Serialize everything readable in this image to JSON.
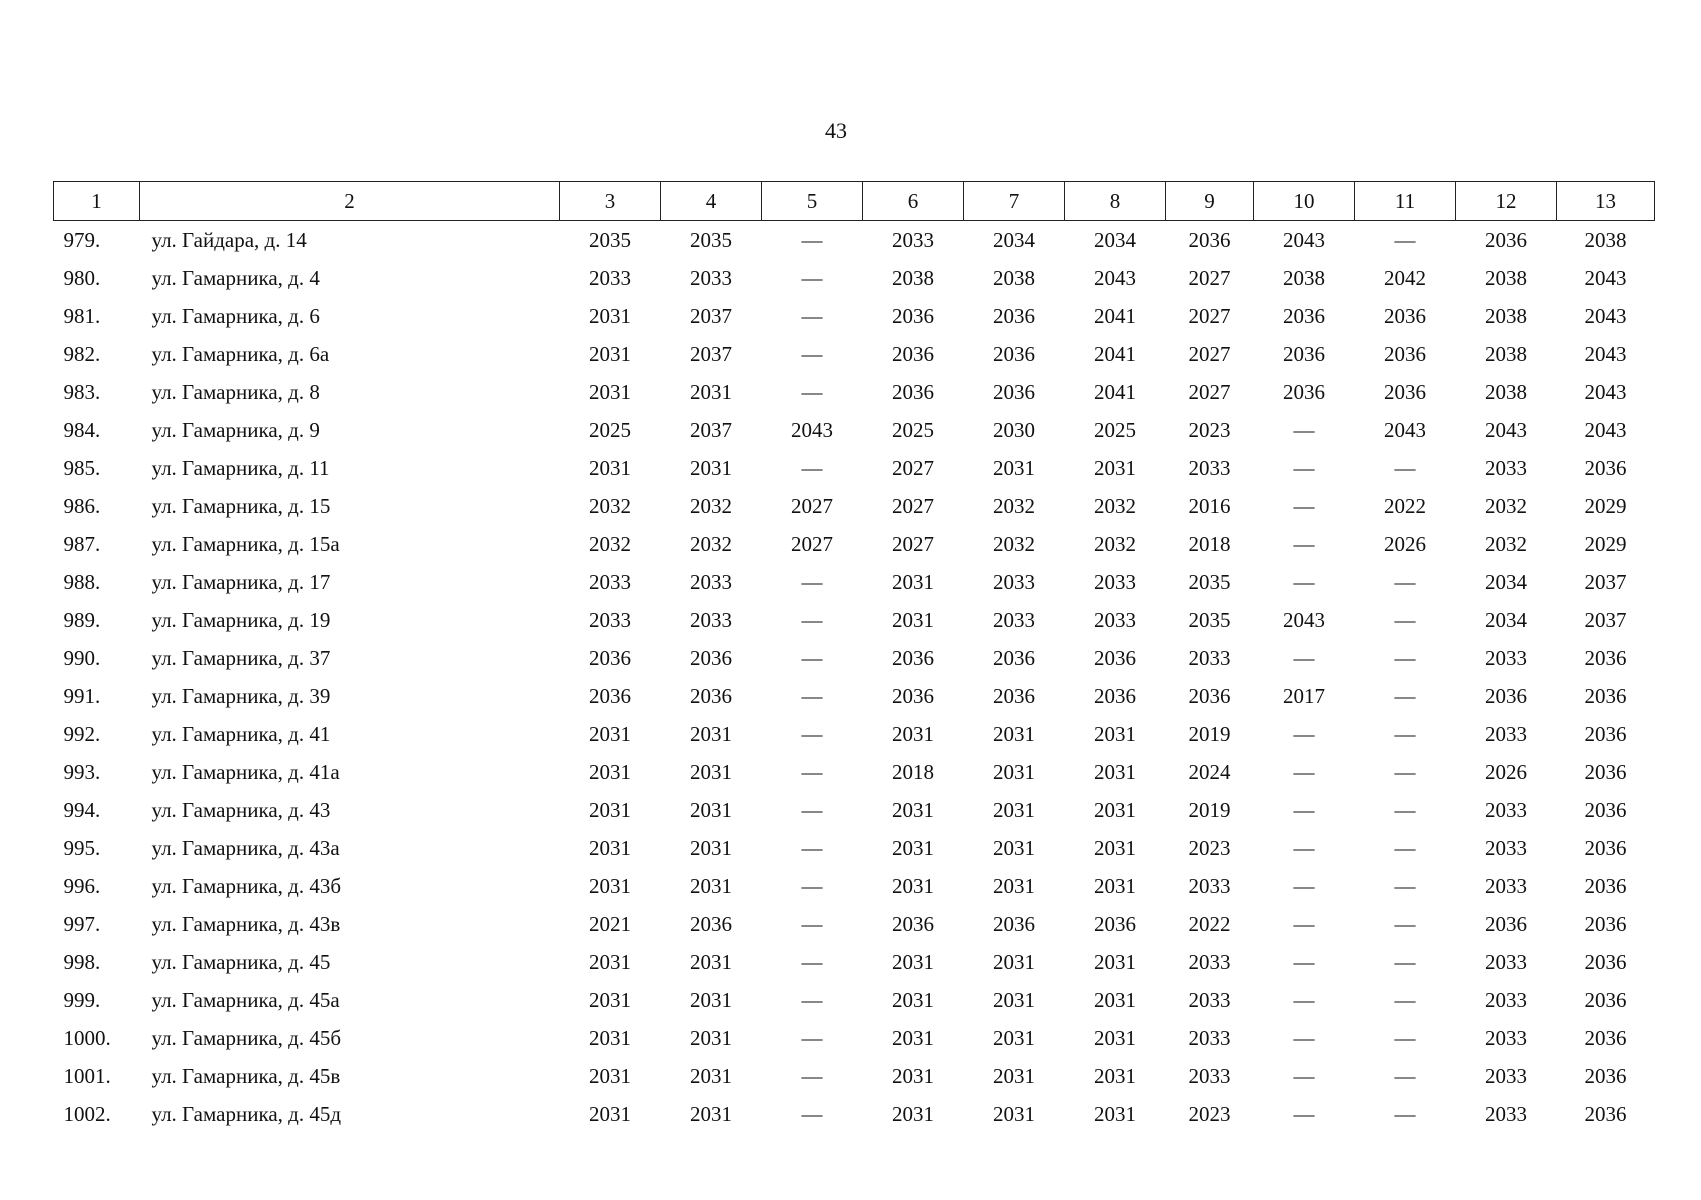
{
  "page_number": "43",
  "table": {
    "header": [
      1,
      2,
      3,
      4,
      5,
      6,
      7,
      8,
      9,
      10,
      11,
      12,
      13
    ],
    "rows": [
      [
        "979.",
        "ул. Гайдара, д. 14",
        2035,
        2035,
        "—",
        2033,
        2034,
        2034,
        2036,
        2043,
        "—",
        2036,
        2038
      ],
      [
        "980.",
        "ул. Гамарника, д. 4",
        2033,
        2033,
        "—",
        2038,
        2038,
        2043,
        2027,
        2038,
        2042,
        2038,
        2043
      ],
      [
        "981.",
        "ул. Гамарника, д. 6",
        2031,
        2037,
        "—",
        2036,
        2036,
        2041,
        2027,
        2036,
        2036,
        2038,
        2043
      ],
      [
        "982.",
        "ул. Гамарника, д. 6а",
        2031,
        2037,
        "—",
        2036,
        2036,
        2041,
        2027,
        2036,
        2036,
        2038,
        2043
      ],
      [
        "983.",
        "ул. Гамарника, д. 8",
        2031,
        2031,
        "—",
        2036,
        2036,
        2041,
        2027,
        2036,
        2036,
        2038,
        2043
      ],
      [
        "984.",
        "ул. Гамарника, д. 9",
        2025,
        2037,
        2043,
        2025,
        2030,
        2025,
        2023,
        "—",
        2043,
        2043,
        2043
      ],
      [
        "985.",
        "ул. Гамарника, д. 11",
        2031,
        2031,
        "—",
        2027,
        2031,
        2031,
        2033,
        "—",
        "—",
        2033,
        2036
      ],
      [
        "986.",
        "ул. Гамарника, д. 15",
        2032,
        2032,
        2027,
        2027,
        2032,
        2032,
        2016,
        "—",
        2022,
        2032,
        2029
      ],
      [
        "987.",
        "ул. Гамарника, д. 15а",
        2032,
        2032,
        2027,
        2027,
        2032,
        2032,
        2018,
        "—",
        2026,
        2032,
        2029
      ],
      [
        "988.",
        "ул. Гамарника, д. 17",
        2033,
        2033,
        "—",
        2031,
        2033,
        2033,
        2035,
        "—",
        "—",
        2034,
        2037
      ],
      [
        "989.",
        "ул. Гамарника, д. 19",
        2033,
        2033,
        "—",
        2031,
        2033,
        2033,
        2035,
        2043,
        "—",
        2034,
        2037
      ],
      [
        "990.",
        "ул. Гамарника, д. 37",
        2036,
        2036,
        "—",
        2036,
        2036,
        2036,
        2033,
        "—",
        "—",
        2033,
        2036
      ],
      [
        "991.",
        "ул. Гамарника, д. 39",
        2036,
        2036,
        "—",
        2036,
        2036,
        2036,
        2036,
        2017,
        "—",
        2036,
        2036
      ],
      [
        "992.",
        "ул. Гамарника, д. 41",
        2031,
        2031,
        "—",
        2031,
        2031,
        2031,
        2019,
        "—",
        "—",
        2033,
        2036
      ],
      [
        "993.",
        "ул. Гамарника, д. 41а",
        2031,
        2031,
        "—",
        2018,
        2031,
        2031,
        2024,
        "—",
        "—",
        2026,
        2036
      ],
      [
        "994.",
        "ул. Гамарника, д. 43",
        2031,
        2031,
        "—",
        2031,
        2031,
        2031,
        2019,
        "—",
        "—",
        2033,
        2036
      ],
      [
        "995.",
        "ул. Гамарника, д. 43а",
        2031,
        2031,
        "—",
        2031,
        2031,
        2031,
        2023,
        "—",
        "—",
        2033,
        2036
      ],
      [
        "996.",
        "ул. Гамарника, д. 43б",
        2031,
        2031,
        "—",
        2031,
        2031,
        2031,
        2033,
        "—",
        "—",
        2033,
        2036
      ],
      [
        "997.",
        "ул. Гамарника, д. 43в",
        2021,
        2036,
        "—",
        2036,
        2036,
        2036,
        2022,
        "—",
        "—",
        2036,
        2036
      ],
      [
        "998.",
        "ул. Гамарника, д. 45",
        2031,
        2031,
        "—",
        2031,
        2031,
        2031,
        2033,
        "—",
        "—",
        2033,
        2036
      ],
      [
        "999.",
        "ул. Гамарника, д. 45а",
        2031,
        2031,
        "—",
        2031,
        2031,
        2031,
        2033,
        "—",
        "—",
        2033,
        2036
      ],
      [
        "1000.",
        "ул. Гамарника, д. 45б",
        2031,
        2031,
        "—",
        2031,
        2031,
        2031,
        2033,
        "—",
        "—",
        2033,
        2036
      ],
      [
        "1001.",
        "ул. Гамарника, д. 45в",
        2031,
        2031,
        "—",
        2031,
        2031,
        2031,
        2033,
        "—",
        "—",
        2033,
        2036
      ],
      [
        "1002.",
        "ул. Гамарника, д. 45д",
        2031,
        2031,
        "—",
        2031,
        2031,
        2031,
        2023,
        "—",
        "—",
        2033,
        2036
      ]
    ]
  }
}
